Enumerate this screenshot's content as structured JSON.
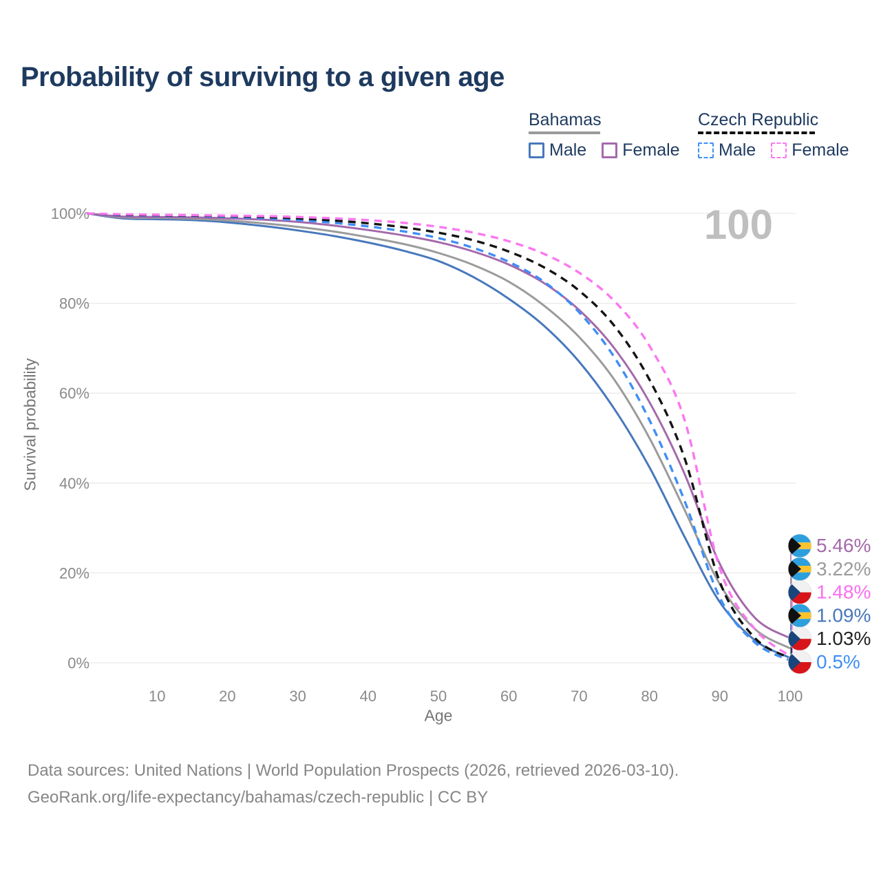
{
  "title": "Probability of surviving to a given age",
  "watermark": "100",
  "legend": {
    "groups": [
      {
        "name": "Bahamas",
        "line_style": "solid",
        "underline_color": "#9a9a9a",
        "items": [
          {
            "label": "Male",
            "color": "#4878bc",
            "dashed": false
          },
          {
            "label": "Female",
            "color": "#a569ab",
            "dashed": false
          }
        ]
      },
      {
        "name": "Czech Republic",
        "line_style": "dashed",
        "underline_color": "#111111",
        "items": [
          {
            "label": "Male",
            "color": "#3f8ef5",
            "dashed": true
          },
          {
            "label": "Female",
            "color": "#fa78f0",
            "dashed": true
          }
        ]
      }
    ]
  },
  "chart_data": {
    "type": "line",
    "title": "Probability of surviving to a given age",
    "xlabel": "Age",
    "ylabel": "Survival probability",
    "xlim": [
      0,
      100
    ],
    "ylim": [
      0,
      100
    ],
    "grid": "horizontal",
    "legend_position": "top-right",
    "x": [
      0,
      5,
      10,
      15,
      20,
      25,
      30,
      35,
      40,
      45,
      50,
      55,
      60,
      65,
      70,
      75,
      80,
      85,
      90,
      95,
      100
    ],
    "x_ticks": [
      {
        "value": 10,
        "label": "10"
      },
      {
        "value": 20,
        "label": "20"
      },
      {
        "value": 30,
        "label": "30"
      },
      {
        "value": 40,
        "label": "40"
      },
      {
        "value": 50,
        "label": "50"
      },
      {
        "value": 60,
        "label": "60"
      },
      {
        "value": 70,
        "label": "70"
      },
      {
        "value": 80,
        "label": "80"
      },
      {
        "value": 90,
        "label": "90"
      },
      {
        "value": 100,
        "label": "100"
      }
    ],
    "y_ticks": [
      {
        "value": 0,
        "label": "0%"
      },
      {
        "value": 20,
        "label": "20%"
      },
      {
        "value": 40,
        "label": "40%"
      },
      {
        "value": 60,
        "label": "60%"
      },
      {
        "value": 80,
        "label": "80%"
      },
      {
        "value": 100,
        "label": "100%"
      }
    ],
    "series": [
      {
        "name": "Bahamas Male",
        "country": "Bahamas",
        "sex": "Male",
        "color": "#4878bc",
        "dashed": false,
        "values": [
          100,
          98.9,
          98.7,
          98.5,
          98.0,
          97.2,
          96.2,
          95.0,
          93.5,
          91.7,
          89.4,
          85.8,
          81.0,
          75.0,
          67.0,
          56.5,
          43.5,
          28.0,
          13.5,
          5.0,
          1.09
        ]
      },
      {
        "name": "Bahamas",
        "country": "Bahamas",
        "sex": "All",
        "color": "#9b9b9b",
        "dashed": false,
        "values": [
          100,
          99.1,
          99.0,
          98.8,
          98.4,
          97.8,
          97.0,
          96.0,
          94.7,
          93.2,
          91.2,
          88.5,
          84.8,
          79.5,
          72.5,
          63.0,
          50.0,
          34.0,
          17.5,
          7.5,
          3.22
        ]
      },
      {
        "name": "Bahamas Female",
        "country": "Bahamas",
        "sex": "Female",
        "color": "#a569ab",
        "dashed": false,
        "values": [
          100,
          99.3,
          99.2,
          99.1,
          98.9,
          98.6,
          98.1,
          97.3,
          96.3,
          95.1,
          93.6,
          91.5,
          88.6,
          84.5,
          78.5,
          70.0,
          58.0,
          42.0,
          22.0,
          10.0,
          5.46
        ]
      },
      {
        "name": "Czech Republic Male",
        "country": "Czech Republic",
        "sex": "Male",
        "color": "#3f8ef5",
        "dashed": true,
        "values": [
          100,
          99.6,
          99.5,
          99.4,
          99.2,
          98.9,
          98.5,
          97.9,
          97.1,
          96.0,
          94.5,
          92.3,
          89.2,
          84.8,
          78.0,
          68.0,
          54.0,
          36.0,
          14.5,
          4.5,
          0.5
        ]
      },
      {
        "name": "Czech Republic",
        "country": "Czech Republic",
        "sex": "All",
        "color": "#141414",
        "dashed": true,
        "values": [
          100,
          99.7,
          99.6,
          99.5,
          99.4,
          99.2,
          98.9,
          98.4,
          97.8,
          96.9,
          95.7,
          94.0,
          91.5,
          88.0,
          82.8,
          75.0,
          63.0,
          45.5,
          18.0,
          5.5,
          1.03
        ]
      },
      {
        "name": "Czech Republic Female",
        "country": "Czech Republic",
        "sex": "Female",
        "color": "#fa78f0",
        "dashed": true,
        "values": [
          100,
          99.8,
          99.7,
          99.6,
          99.5,
          99.4,
          99.2,
          98.9,
          98.5,
          97.9,
          97.0,
          95.7,
          93.8,
          91.0,
          86.8,
          80.5,
          70.5,
          54.0,
          21.0,
          7.5,
          1.48
        ]
      }
    ],
    "end_labels": [
      {
        "value": "5.46%",
        "series": "Bahamas Female",
        "flag": "bahamas",
        "color": "#a569ab"
      },
      {
        "value": "3.22%",
        "series": "Bahamas",
        "flag": "bahamas",
        "color": "#9b9b9b"
      },
      {
        "value": "1.48%",
        "series": "Czech Republic Female",
        "flag": "czech-republic",
        "color": "#fa6ff0"
      },
      {
        "value": "1.09%",
        "series": "Bahamas Male",
        "flag": "bahamas",
        "color": "#4878bc"
      },
      {
        "value": "1.03%",
        "series": "Czech Republic",
        "flag": "czech-republic",
        "color": "#222222"
      },
      {
        "value": "0.5%",
        "series": "Czech Republic Male",
        "flag": "czech-republic",
        "color": "#3f8ef5"
      }
    ]
  },
  "colors": {
    "title_text": "#1e3a5f",
    "axis_text": "#8a8a8a",
    "axis_title_text": "#767676",
    "gridline": "#e9e9e9",
    "watermark": "#bfbfbf",
    "footer_text": "#868686",
    "flag_bahamas_blue": "#2e9fdd",
    "flag_bahamas_gold": "#fdc32f",
    "flag_czech_red": "#d7141a",
    "flag_czech_blue": "#19457d"
  },
  "footer": {
    "line1": "Data sources: United Nations | World Population Prospects (2026, retrieved 2026-03-10).",
    "line2": "GeoRank.org/life-expectancy/bahamas/czech-republic | CC BY"
  }
}
